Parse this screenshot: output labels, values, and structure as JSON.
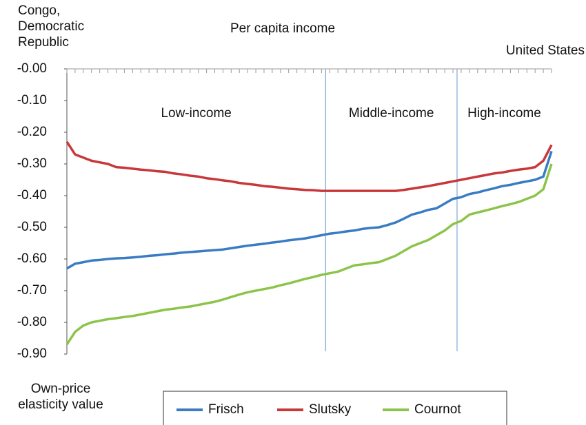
{
  "chart_data": {
    "type": "line",
    "title": "Per capita income",
    "y_label": "Own-price elasticity value",
    "categories": [
      "Congo, Democratic Republic",
      null,
      null,
      null,
      null,
      null,
      null,
      null,
      null,
      null,
      null,
      null,
      null,
      null,
      null,
      null,
      null,
      null,
      null,
      null,
      null,
      null,
      null,
      null,
      null,
      null,
      null,
      null,
      null,
      null,
      null,
      null,
      null,
      null,
      null,
      null,
      null,
      null,
      null,
      null,
      null,
      null,
      null,
      null,
      null,
      null,
      null,
      null,
      null,
      null,
      null,
      null,
      null,
      null,
      null,
      null,
      null,
      null,
      null,
      "United States"
    ],
    "groups": [
      {
        "label": "Low-income",
        "start": 0,
        "end": 31
      },
      {
        "label": "Middle-income",
        "start": 32,
        "end": 47
      },
      {
        "label": "High-income",
        "start": 48,
        "end": 59
      }
    ],
    "series": [
      {
        "name": "Frisch",
        "color": "#3a7cc3",
        "values": [
          -0.63,
          -0.615,
          -0.61,
          -0.605,
          -0.603,
          -0.6,
          -0.598,
          -0.597,
          -0.595,
          -0.593,
          -0.59,
          -0.588,
          -0.585,
          -0.583,
          -0.58,
          -0.578,
          -0.576,
          -0.574,
          -0.572,
          -0.57,
          -0.566,
          -0.562,
          -0.558,
          -0.555,
          -0.552,
          -0.548,
          -0.545,
          -0.541,
          -0.538,
          -0.535,
          -0.53,
          -0.525,
          -0.52,
          -0.517,
          -0.513,
          -0.51,
          -0.505,
          -0.502,
          -0.5,
          -0.493,
          -0.485,
          -0.473,
          -0.46,
          -0.453,
          -0.445,
          -0.44,
          -0.425,
          -0.41,
          -0.405,
          -0.395,
          -0.39,
          -0.383,
          -0.377,
          -0.37,
          -0.366,
          -0.36,
          -0.355,
          -0.35,
          -0.34,
          -0.26
        ]
      },
      {
        "name": "Slutsky",
        "color": "#c8373a",
        "values": [
          -0.23,
          -0.27,
          -0.28,
          -0.29,
          -0.295,
          -0.3,
          -0.31,
          -0.312,
          -0.315,
          -0.318,
          -0.32,
          -0.323,
          -0.325,
          -0.33,
          -0.333,
          -0.337,
          -0.34,
          -0.345,
          -0.348,
          -0.352,
          -0.355,
          -0.36,
          -0.363,
          -0.366,
          -0.37,
          -0.372,
          -0.375,
          -0.378,
          -0.38,
          -0.382,
          -0.383,
          -0.385,
          -0.385,
          -0.385,
          -0.385,
          -0.385,
          -0.385,
          -0.385,
          -0.385,
          -0.385,
          -0.385,
          -0.382,
          -0.378,
          -0.374,
          -0.37,
          -0.365,
          -0.36,
          -0.355,
          -0.35,
          -0.345,
          -0.34,
          -0.335,
          -0.33,
          -0.327,
          -0.322,
          -0.318,
          -0.315,
          -0.31,
          -0.29,
          -0.24
        ]
      },
      {
        "name": "Cournot",
        "color": "#8cc44a",
        "values": [
          -0.87,
          -0.83,
          -0.81,
          -0.8,
          -0.795,
          -0.79,
          -0.787,
          -0.783,
          -0.78,
          -0.775,
          -0.77,
          -0.765,
          -0.76,
          -0.757,
          -0.753,
          -0.75,
          -0.745,
          -0.74,
          -0.735,
          -0.728,
          -0.72,
          -0.712,
          -0.705,
          -0.7,
          -0.695,
          -0.69,
          -0.683,
          -0.677,
          -0.67,
          -0.663,
          -0.657,
          -0.65,
          -0.645,
          -0.64,
          -0.63,
          -0.62,
          -0.617,
          -0.613,
          -0.61,
          -0.6,
          -0.59,
          -0.575,
          -0.56,
          -0.55,
          -0.54,
          -0.525,
          -0.51,
          -0.49,
          -0.48,
          -0.46,
          -0.453,
          -0.447,
          -0.44,
          -0.433,
          -0.427,
          -0.42,
          -0.41,
          -0.4,
          -0.38,
          -0.3
        ]
      }
    ],
    "ylim": [
      -0.9,
      0
    ],
    "yticks": [
      {
        "value": 0,
        "label": "-0.00"
      },
      {
        "value": -0.1,
        "label": "-0.10"
      },
      {
        "value": -0.2,
        "label": "-0.20"
      },
      {
        "value": -0.3,
        "label": "-0.30"
      },
      {
        "value": -0.4,
        "label": "-0.40"
      },
      {
        "value": -0.5,
        "label": "-0.50"
      },
      {
        "value": -0.6,
        "label": "-0.60"
      },
      {
        "value": -0.7,
        "label": "-0.70"
      },
      {
        "value": -0.8,
        "label": "-0.80"
      },
      {
        "value": -0.9,
        "label": "-0.90"
      }
    ],
    "legend": "bottom"
  }
}
